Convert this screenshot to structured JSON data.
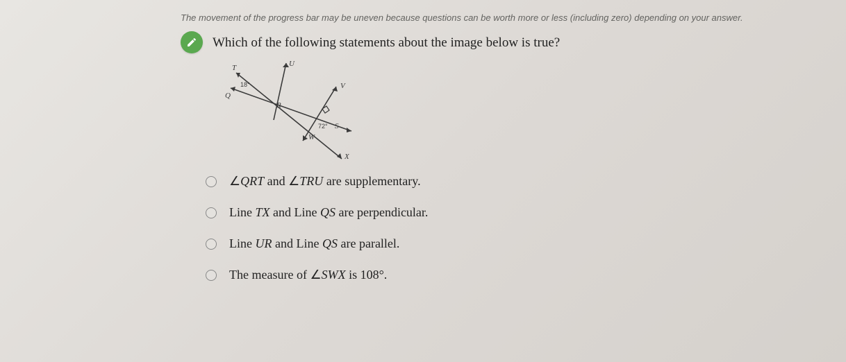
{
  "progress_note": "The movement of the progress bar may be uneven because questions can be worth more or less (including zero) depending on your answer.",
  "question": "Which of the following statements about the image below is true?",
  "diagram": {
    "labels": {
      "T": "T",
      "Q": "Q",
      "U": "U",
      "V": "V",
      "R": "R",
      "S": "S",
      "W": "W",
      "X": "X"
    },
    "angle_qrt": "18°",
    "angle_ws": "72°",
    "stroke": "#3b3b3b",
    "label_color": "#3a3a3a"
  },
  "options": [
    {
      "html": "∠<em>QRT</em> and ∠<em>TRU</em> are supplementary."
    },
    {
      "html": "Line <em>TX</em> and Line <em>QS</em> are perpendicular."
    },
    {
      "html": "Line <em>UR</em> and Line <em>QS</em> are parallel."
    },
    {
      "html": "The measure of ∠<em>SWX</em> is 108°."
    }
  ]
}
